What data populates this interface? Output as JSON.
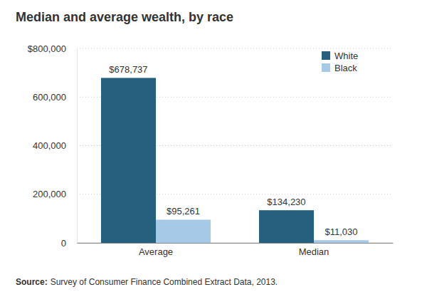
{
  "chart_data": {
    "type": "bar",
    "title": "Median and average wealth, by race",
    "categories": [
      "Average",
      "Median"
    ],
    "series": [
      {
        "name": "White",
        "color": "#25607e",
        "values": [
          678737,
          134230
        ],
        "value_labels": [
          "$678,737",
          "$134,230"
        ]
      },
      {
        "name": "Black",
        "color": "#a6c9e8",
        "values": [
          95261,
          11030
        ],
        "value_labels": [
          "$95,261",
          "$11,030"
        ]
      }
    ],
    "ylim": [
      0,
      800000
    ],
    "yticks": [
      0,
      {
        "value": 200000,
        "label": "200,000"
      },
      {
        "value": 400000,
        "label": "400,000"
      },
      {
        "value": 600000,
        "label": "600,000"
      },
      {
        "value": 800000,
        "label": "$800,000"
      }
    ],
    "grid": true,
    "legend": "upper right",
    "data_labels": true,
    "source": {
      "label": "Source:",
      "text": "Survey of Consumer Finance Combined Extract Data, 2013."
    }
  }
}
